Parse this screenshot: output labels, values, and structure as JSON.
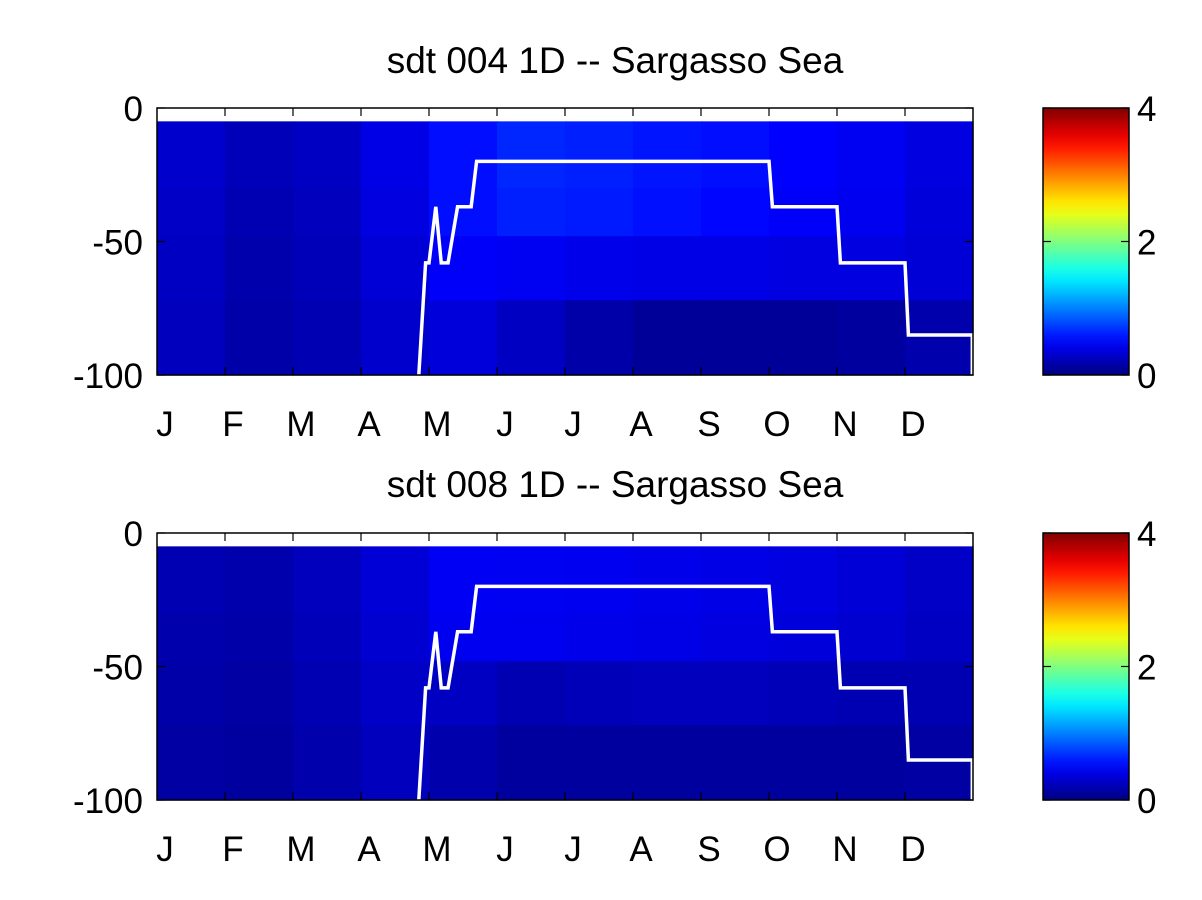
{
  "chart_data": [
    {
      "type": "heatmap",
      "title": "sdt  004 1D   -- Sargasso Sea",
      "x_tick_labels": [
        "J",
        "F",
        "M",
        "A",
        "M",
        "J",
        "J",
        "A",
        "S",
        "O",
        "N",
        "D"
      ],
      "y_tick_labels": [
        "0",
        "-50",
        "-100"
      ],
      "ylim": [
        -100,
        0
      ],
      "xlim": [
        0,
        12
      ],
      "colorbar": {
        "ticks": [
          "0",
          "2",
          "4"
        ],
        "range": [
          0,
          4
        ],
        "colormap": "jet"
      },
      "depths_top": [
        -5,
        -30,
        -48,
        -72
      ],
      "heatmap_values": [
        [
          0.3,
          0.22,
          0.26,
          0.4,
          0.55,
          0.65,
          0.62,
          0.58,
          0.55,
          0.5,
          0.45,
          0.38
        ],
        [
          0.28,
          0.2,
          0.24,
          0.38,
          0.55,
          0.62,
          0.6,
          0.56,
          0.52,
          0.48,
          0.44,
          0.36
        ],
        [
          0.26,
          0.18,
          0.22,
          0.34,
          0.48,
          0.45,
          0.42,
          0.4,
          0.4,
          0.38,
          0.38,
          0.34
        ],
        [
          0.24,
          0.16,
          0.2,
          0.3,
          0.36,
          0.26,
          0.16,
          0.1,
          0.1,
          0.1,
          0.12,
          0.18
        ]
      ],
      "line": {
        "color": "#ffffff",
        "x": [
          3.85,
          3.95,
          4.0,
          4.1,
          4.18,
          4.28,
          4.42,
          4.62,
          4.7,
          9.0,
          9.05,
          10.0,
          10.05,
          11.0,
          11.05,
          12.0,
          12.05
        ],
        "y": [
          -100,
          -58,
          -58,
          -37,
          -58,
          -58,
          -37,
          -37,
          -20,
          -20,
          -37,
          -37,
          -58,
          -58,
          -85,
          -85,
          -100
        ]
      }
    },
    {
      "type": "heatmap",
      "title": "sdt  008 1D   -- Sargasso Sea",
      "x_tick_labels": [
        "J",
        "F",
        "M",
        "A",
        "M",
        "J",
        "J",
        "A",
        "S",
        "O",
        "N",
        "D"
      ],
      "y_tick_labels": [
        "0",
        "-50",
        "-100"
      ],
      "ylim": [
        -100,
        0
      ],
      "xlim": [
        0,
        12
      ],
      "colorbar": {
        "ticks": [
          "0",
          "2",
          "4"
        ],
        "range": [
          0,
          4
        ],
        "colormap": "jet"
      },
      "depths_top": [
        -5,
        -30,
        -48,
        -72
      ],
      "heatmap_values": [
        [
          0.2,
          0.18,
          0.24,
          0.34,
          0.46,
          0.45,
          0.44,
          0.42,
          0.4,
          0.38,
          0.34,
          0.28
        ],
        [
          0.18,
          0.16,
          0.22,
          0.32,
          0.44,
          0.44,
          0.42,
          0.4,
          0.38,
          0.36,
          0.32,
          0.26
        ],
        [
          0.16,
          0.14,
          0.2,
          0.28,
          0.26,
          0.2,
          0.22,
          0.24,
          0.24,
          0.22,
          0.2,
          0.2
        ],
        [
          0.14,
          0.12,
          0.18,
          0.24,
          0.18,
          0.12,
          0.12,
          0.12,
          0.12,
          0.12,
          0.12,
          0.14
        ]
      ],
      "line": {
        "color": "#ffffff",
        "x": [
          3.85,
          3.95,
          4.0,
          4.1,
          4.18,
          4.28,
          4.42,
          4.62,
          4.7,
          9.0,
          9.05,
          10.0,
          10.05,
          11.0,
          11.05,
          12.0,
          12.05
        ],
        "y": [
          -100,
          -58,
          -58,
          -37,
          -58,
          -58,
          -37,
          -37,
          -20,
          -20,
          -37,
          -37,
          -58,
          -58,
          -85,
          -85,
          -100
        ]
      }
    }
  ]
}
